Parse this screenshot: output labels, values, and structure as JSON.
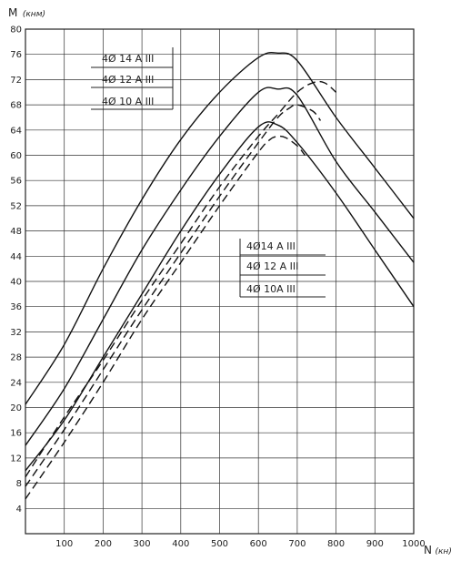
{
  "chart_data": {
    "type": "line",
    "xlabel": "N",
    "xunit": "(кн)",
    "ylabel": "M",
    "yunit": "(кнм)",
    "xlim": [
      0,
      1000
    ],
    "ylim": [
      0,
      80
    ],
    "xticks": [
      100,
      200,
      300,
      400,
      500,
      600,
      700,
      800,
      900,
      1000
    ],
    "yticks": [
      4,
      8,
      12,
      16,
      20,
      24,
      28,
      32,
      36,
      40,
      44,
      48,
      52,
      56,
      60,
      64,
      68,
      72,
      76,
      80
    ],
    "grid": true,
    "series": [
      {
        "name": "4Ø14 AIII",
        "style": "solid",
        "x": [
          0,
          100,
          200,
          300,
          400,
          500,
          600,
          650,
          700,
          800,
          900,
          1000
        ],
        "y": [
          20.5,
          30,
          42,
          53,
          62.5,
          70,
          75.5,
          76.2,
          75,
          66,
          58,
          50
        ]
      },
      {
        "name": "4Ø12 AIII",
        "style": "solid",
        "x": [
          0,
          100,
          200,
          300,
          400,
          500,
          600,
          650,
          700,
          800,
          900,
          1000
        ],
        "y": [
          14,
          23,
          34,
          45,
          54.5,
          63,
          70,
          70.5,
          69.5,
          59,
          51,
          43
        ]
      },
      {
        "name": "4Ø10 AIII",
        "style": "solid",
        "x": [
          0,
          100,
          200,
          300,
          400,
          500,
          600,
          650,
          700,
          800,
          900,
          1000
        ],
        "y": [
          10,
          18,
          28,
          38,
          48,
          57,
          64.5,
          64.8,
          62,
          54,
          45,
          36
        ]
      },
      {
        "name": "4Ø14 AIII",
        "style": "dashed",
        "x": [
          0,
          100,
          200,
          300,
          400,
          500,
          600,
          650,
          700,
          740,
          770,
          800
        ],
        "y": [
          9,
          18.5,
          27.5,
          37,
          46,
          55,
          63,
          66.5,
          70,
          71.5,
          71.5,
          70
        ]
      },
      {
        "name": "4Ø12 AIII",
        "style": "dashed",
        "x": [
          0,
          100,
          200,
          300,
          400,
          500,
          600,
          650,
          680,
          700,
          740,
          760
        ],
        "y": [
          7.5,
          16.5,
          26,
          35.5,
          44.5,
          53.5,
          62,
          66,
          67.5,
          68,
          67,
          65.5
        ]
      },
      {
        "name": "4Ø10 AIII",
        "style": "dashed",
        "x": [
          0,
          100,
          200,
          300,
          400,
          500,
          600,
          630,
          650,
          670,
          700,
          720
        ],
        "y": [
          5.5,
          14.5,
          24,
          34,
          43,
          52,
          60.5,
          62.5,
          63,
          62.8,
          61.5,
          60
        ]
      }
    ],
    "legends": [
      {
        "style": "solid",
        "entries": [
          "4Ø 14 A III",
          "4Ø 12 A III",
          "4Ø 10 A III"
        ]
      },
      {
        "style": "dashed",
        "entries": [
          "4Ø14 A III",
          "4Ø 12 A III",
          "4Ø 10A III"
        ]
      }
    ]
  }
}
